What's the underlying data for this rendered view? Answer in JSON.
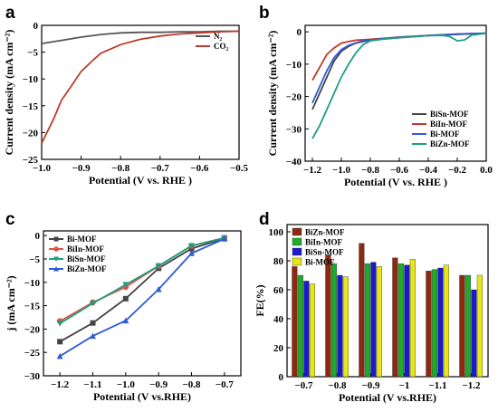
{
  "chart_data": [
    {
      "id": "a",
      "panel_label": "a",
      "type": "line",
      "xlabel": "Potential (V vs. RHE )",
      "ylabel": "Current density (mA cm⁻²)",
      "xlim": [
        -1.0,
        -0.5
      ],
      "ylim": [
        -25,
        0
      ],
      "xticks": [
        -1.0,
        -0.9,
        -0.8,
        -0.7,
        -0.6,
        -0.5
      ],
      "xtick_labels": [
        "−1.0",
        "−0.9",
        "−0.8",
        "−0.7",
        "−0.6",
        "−0.5"
      ],
      "yticks": [
        0,
        -5,
        -10,
        -15,
        -20,
        -25
      ],
      "ytick_labels": [
        "0",
        "−5",
        "−10",
        "−15",
        "−20",
        "−25"
      ],
      "legend_position": "top-right",
      "series": [
        {
          "name": "N₂",
          "color": "#555555",
          "x": [
            -1.0,
            -0.95,
            -0.9,
            -0.85,
            -0.8,
            -0.75,
            -0.7,
            -0.65,
            -0.6,
            -0.55,
            -0.5
          ],
          "y": [
            -3.4,
            -2.8,
            -2.2,
            -1.7,
            -1.4,
            -1.3,
            -1.3,
            -1.2,
            -1.2,
            -1.1,
            -1.1
          ]
        },
        {
          "name": "CO₂",
          "color": "#c0392b",
          "x": [
            -1.0,
            -0.97,
            -0.95,
            -0.92,
            -0.9,
            -0.87,
            -0.85,
            -0.8,
            -0.75,
            -0.7,
            -0.65,
            -0.6,
            -0.55,
            -0.5
          ],
          "y": [
            -22,
            -17.5,
            -14,
            -10.8,
            -8.6,
            -6.5,
            -5.2,
            -3.6,
            -2.6,
            -2.0,
            -1.6,
            -1.4,
            -1.2,
            -1.1
          ]
        }
      ]
    },
    {
      "id": "b",
      "panel_label": "b",
      "type": "line",
      "xlabel": "Potential (V vs. RHE )",
      "ylabel": "Current density (mA cm⁻²)",
      "xlim": [
        -1.25,
        0.0
      ],
      "ylim": [
        -40,
        2
      ],
      "xticks": [
        -1.2,
        -1.0,
        -0.8,
        -0.6,
        -0.4,
        -0.2,
        0.0
      ],
      "xtick_labels": [
        "−1.2",
        "−1.0",
        "−0.8",
        "−0.6",
        "−0.4",
        "−0.2",
        "0.0"
      ],
      "yticks": [
        0,
        -10,
        -20,
        -30,
        -40
      ],
      "ytick_labels": [
        "0",
        "−10",
        "−20",
        "−30",
        "−40"
      ],
      "legend_position": "bottom-right",
      "series": [
        {
          "name": "BiSn-MOF",
          "color": "#444444",
          "x": [
            -1.2,
            -1.15,
            -1.1,
            -1.05,
            -1.0,
            -0.95,
            -0.9,
            -0.85,
            -0.8,
            -0.7,
            -0.6,
            -0.4,
            -0.2,
            0.0
          ],
          "y": [
            -24,
            -19,
            -14,
            -9,
            -6,
            -4.5,
            -3.5,
            -3,
            -2.6,
            -2.2,
            -1.8,
            -1.2,
            -0.8,
            -0.5
          ]
        },
        {
          "name": "BiIn-MOF",
          "color": "#c0392b",
          "x": [
            -1.2,
            -1.15,
            -1.1,
            -1.05,
            -1.0,
            -0.95,
            -0.9,
            -0.8,
            -0.7,
            -0.6,
            -0.4,
            -0.2,
            0.0
          ],
          "y": [
            -15,
            -11,
            -7,
            -5,
            -3.5,
            -3,
            -2.6,
            -2.3,
            -2,
            -1.6,
            -1.1,
            -0.7,
            -0.4
          ]
        },
        {
          "name": "Bi-MOF",
          "color": "#2e5bd6",
          "x": [
            -1.2,
            -1.15,
            -1.1,
            -1.05,
            -1.0,
            -0.95,
            -0.9,
            -0.85,
            -0.8,
            -0.7,
            -0.6,
            -0.4,
            -0.2,
            0.0
          ],
          "y": [
            -22,
            -17,
            -12,
            -8,
            -5.5,
            -4.2,
            -3.4,
            -2.8,
            -2.5,
            -2.1,
            -1.7,
            -1.1,
            -0.7,
            -0.4
          ]
        },
        {
          "name": "BiZn-MOF",
          "color": "#1e9e7e",
          "x": [
            -1.2,
            -1.15,
            -1.1,
            -1.05,
            -1.0,
            -0.95,
            -0.9,
            -0.85,
            -0.8,
            -0.7,
            -0.6,
            -0.4,
            -0.3,
            -0.25,
            -0.2,
            -0.15,
            -0.1,
            0.0
          ],
          "y": [
            -33,
            -29,
            -24,
            -19,
            -14,
            -10,
            -6.5,
            -4,
            -2.8,
            -2.2,
            -1.8,
            -1.2,
            -1.1,
            -1.5,
            -2.8,
            -2.5,
            -1,
            -0.5
          ]
        }
      ]
    },
    {
      "id": "c",
      "panel_label": "c",
      "type": "line",
      "xlabel": "Potential (V vs.RHE)",
      "ylabel": "j (mA cm⁻²)",
      "xlim": [
        -1.25,
        -0.65
      ],
      "ylim": [
        -30,
        1
      ],
      "categories_x": [
        -1.2,
        -1.1,
        -1.0,
        -0.9,
        -0.8,
        -0.7
      ],
      "xticks": [
        -1.2,
        -1.1,
        -1.0,
        -0.9,
        -0.8,
        -0.7
      ],
      "xtick_labels": [
        "−1.2",
        "−1.1",
        "−1.0",
        "−0.9",
        "−0.8",
        "−0.7"
      ],
      "yticks": [
        0,
        -5,
        -10,
        -15,
        -20,
        -25,
        -30
      ],
      "ytick_labels": [
        "0",
        "−5",
        "−10",
        "−15",
        "−20",
        "−25",
        "−30"
      ],
      "legend_position": "top-left",
      "series": [
        {
          "name": "Bi-MOF",
          "color": "#444444",
          "marker": "square",
          "x": [
            -1.2,
            -1.1,
            -1.0,
            -0.9,
            -0.8,
            -0.7
          ],
          "y": [
            -22.7,
            -18.7,
            -13.5,
            -7.0,
            -2.8,
            -0.6
          ]
        },
        {
          "name": "BiIn-MOF",
          "color": "#e0524a",
          "marker": "circle",
          "x": [
            -1.2,
            -1.1,
            -1.0,
            -0.9,
            -0.8,
            -0.7
          ],
          "y": [
            -18.3,
            -14.3,
            -11.0,
            -6.5,
            -2.2,
            -0.5
          ]
        },
        {
          "name": "BiSn-MOF",
          "color": "#1e9e7e",
          "marker": "triangle-down",
          "x": [
            -1.2,
            -1.1,
            -1.0,
            -0.9,
            -0.8,
            -0.7
          ],
          "y": [
            -18.8,
            -14.5,
            -10.5,
            -6.5,
            -2.2,
            -0.5
          ]
        },
        {
          "name": "BiZn-MOF",
          "color": "#2e5bd6",
          "marker": "triangle-up",
          "x": [
            -1.2,
            -1.1,
            -1.0,
            -0.9,
            -0.8,
            -0.7
          ],
          "y": [
            -25.8,
            -21.5,
            -18.2,
            -11.5,
            -3.8,
            -0.7
          ]
        }
      ]
    },
    {
      "id": "d",
      "panel_label": "d",
      "type": "bar",
      "xlabel": "Potential (V vs.RHE)",
      "ylabel": "FE(%)",
      "ylim": [
        0,
        105
      ],
      "categories": [
        "−0.7",
        "−0.8",
        "−0.9",
        "−1",
        "−1.1",
        "−1.2"
      ],
      "yticks": [
        0,
        20,
        40,
        60,
        80,
        100
      ],
      "ytick_labels": [
        "0",
        "20",
        "40",
        "60",
        "80",
        "100"
      ],
      "legend_position": "top-left",
      "series": [
        {
          "name": "BiZn-MOF",
          "color": "#8b2a10",
          "values": [
            76,
            84,
            92,
            82,
            73,
            70
          ]
        },
        {
          "name": "BiIn-MOF",
          "color": "#1faa2a",
          "values": [
            70,
            78,
            78,
            78,
            74,
            70
          ]
        },
        {
          "name": "BiSn-MOF",
          "color": "#1a1acc",
          "values": [
            66,
            70,
            79,
            77,
            75,
            60
          ]
        },
        {
          "name": "Bi-MOF",
          "color": "#e6e61a",
          "values": [
            64,
            69,
            76,
            81,
            77,
            70
          ]
        }
      ]
    }
  ]
}
